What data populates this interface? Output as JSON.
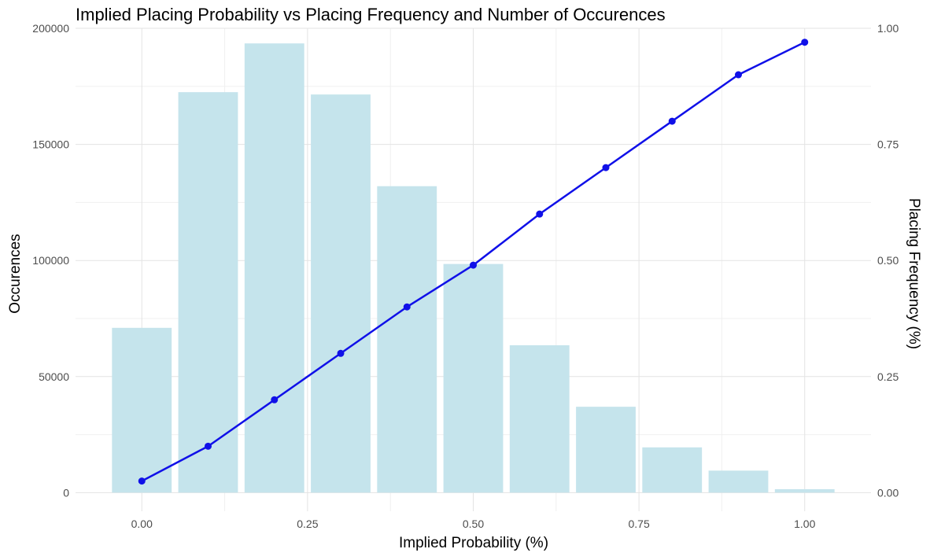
{
  "chart_data": {
    "type": "bar",
    "title": "Implied Placing Probability vs Placing Frequency and Number of Occurences",
    "xlabel": "Implied Probability (%)",
    "ylabel": "Occurences",
    "y2label": "Placing Frequency (%)",
    "x": [
      0.0,
      0.1,
      0.2,
      0.3,
      0.4,
      0.5,
      0.6,
      0.7,
      0.8,
      0.9,
      1.0
    ],
    "xlim": [
      -0.1,
      1.1
    ],
    "ylim": [
      -8000,
      200000
    ],
    "y2lim": [
      -0.04,
      1.0
    ],
    "x_ticks": [
      0.0,
      0.25,
      0.5,
      0.75,
      1.0
    ],
    "x_tick_labels": [
      "0.00",
      "0.25",
      "0.50",
      "0.75",
      "1.00"
    ],
    "y_ticks": [
      0,
      50000,
      100000,
      150000,
      200000
    ],
    "y_tick_labels": [
      "0",
      "50000",
      "100000",
      "150000",
      "200000"
    ],
    "y2_ticks": [
      0.0,
      0.25,
      0.5,
      0.75,
      1.0
    ],
    "y2_tick_labels": [
      "0.00",
      "0.25",
      "0.50",
      "0.75",
      "1.00"
    ],
    "bar_width": 0.09,
    "grid": true,
    "series": [
      {
        "type": "bar",
        "axis": "left",
        "color": "#c5e4ec",
        "values": [
          71000,
          172500,
          193500,
          171500,
          132000,
          98500,
          63500,
          37000,
          19500,
          9500,
          1500
        ]
      },
      {
        "type": "line",
        "axis": "right",
        "color": "#1010e8",
        "values": [
          0.025,
          0.1,
          0.2,
          0.3,
          0.4,
          0.49,
          0.6,
          0.7,
          0.8,
          0.9,
          0.97
        ]
      }
    ]
  }
}
